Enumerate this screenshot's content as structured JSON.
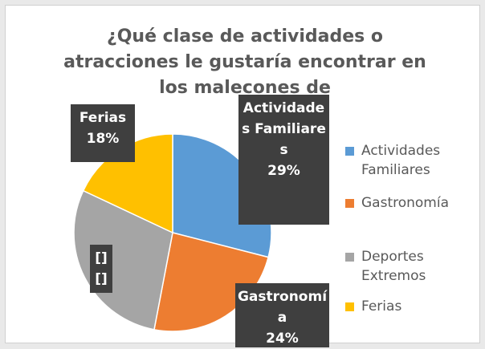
{
  "chart_data": {
    "type": "pie",
    "title": "¿Qué clase de actividades o atracciones le gustaría encontrar en los malecones de",
    "categories": [
      "Actividades Familiares",
      "Gastronomía",
      "Deportes Extremos",
      "Ferias"
    ],
    "values": [
      29,
      24,
      29,
      18
    ],
    "colors": [
      "#5b9bd5",
      "#ed7d31",
      "#a5a5a5",
      "#ffc000"
    ],
    "data_labels": [
      {
        "name": "Actividades Familiares",
        "value": "29%"
      },
      {
        "name": "Gastronomía",
        "value": "24%"
      },
      {
        "name": "[]",
        "value": "[]"
      },
      {
        "name": "Ferias",
        "value": "18%"
      }
    ],
    "legend": "right"
  }
}
